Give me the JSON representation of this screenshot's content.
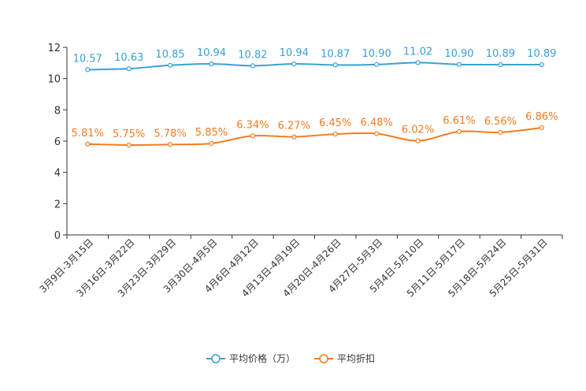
{
  "chart_data": {
    "type": "line",
    "categories": [
      "3月9日-3月15日",
      "3月16日-3月22日",
      "3月23日-3月29日",
      "3月30日-4月5日",
      "4月6日-4月12日",
      "4月13日-4月19日",
      "4月20日-4月26日",
      "4月27日-5月3日",
      "5月4日-5月10日",
      "5月11日-5月17日",
      "5月18日-5月24日",
      "5月25日-5月31日"
    ],
    "series": [
      {
        "name": "平均价格（万）",
        "color": "#3a9fd6",
        "values": [
          10.57,
          10.63,
          10.85,
          10.94,
          10.82,
          10.94,
          10.87,
          10.9,
          11.02,
          10.9,
          10.89,
          10.89
        ],
        "labels": [
          "10.57",
          "10.63",
          "10.85",
          "10.94",
          "10.82",
          "10.94",
          "10.87",
          "10.90",
          "11.02",
          "10.90",
          "10.89",
          "10.89"
        ]
      },
      {
        "name": "平均折扣",
        "color": "#f47b20",
        "values": [
          5.81,
          5.75,
          5.78,
          5.85,
          6.34,
          6.27,
          6.45,
          6.48,
          6.02,
          6.61,
          6.56,
          6.86
        ],
        "labels": [
          "5.81%",
          "5.75%",
          "5.78%",
          "5.85%",
          "6.34%",
          "6.27%",
          "6.45%",
          "6.48%",
          "6.02%",
          "6.61%",
          "6.56%",
          "6.86%"
        ]
      }
    ],
    "yticks": [
      "0",
      "2",
      "4",
      "6",
      "8",
      "10",
      "12"
    ],
    "ylim": [
      0,
      12
    ],
    "title": "",
    "xlabel": "",
    "ylabel": "",
    "grid": false,
    "legend_position": "bottom-center"
  }
}
